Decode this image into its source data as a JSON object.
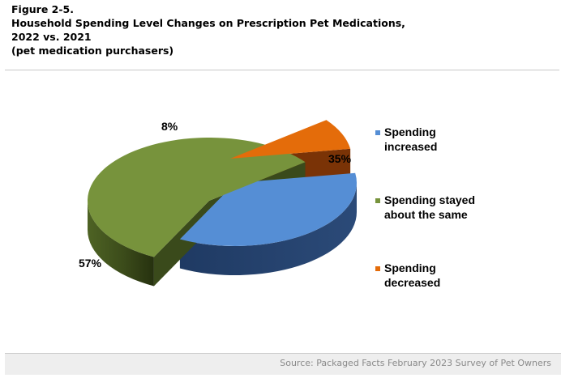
{
  "figure": {
    "label": "Figure 2-5.",
    "title_line1": "Household Spending Level Changes on Prescription Pet Medications,",
    "title_line2": "2022 vs. 2021",
    "subtitle": "(pet medication purchasers)"
  },
  "source": "Source: Packaged Facts February 2023 Survey of Pet Owners",
  "chart_data": {
    "type": "pie",
    "style": "3d-exploded",
    "legend_position": "right",
    "slices": [
      {
        "label": "Spending increased",
        "legend_lines": [
          "Spending",
          "increased"
        ],
        "value": 35,
        "value_label": "35%",
        "color": "#558ed5"
      },
      {
        "label": "Spending stayed about the same",
        "legend_lines": [
          "Spending stayed",
          "about the same"
        ],
        "value": 57,
        "value_label": "57%",
        "color": "#77933c"
      },
      {
        "label": "Spending decreased",
        "legend_lines": [
          "Spending",
          "decreased"
        ],
        "value": 8,
        "value_label": "8%",
        "color": "#e46c0a"
      }
    ]
  }
}
